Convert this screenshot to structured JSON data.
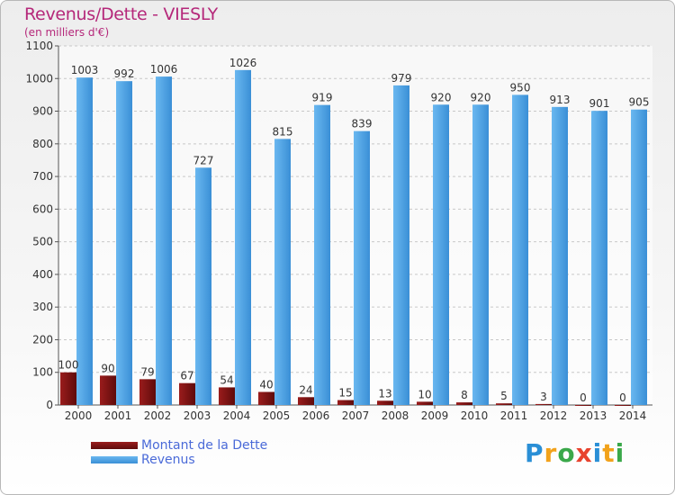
{
  "header": {
    "title": "Revenus/Dette - VIESLY",
    "subtitle": "(en milliers d'€)"
  },
  "logo": {
    "text": "Proxiti",
    "letters": [
      {
        "char": "P",
        "color": "#2a8fd6"
      },
      {
        "char": "r",
        "color": "#f2a21b"
      },
      {
        "char": "o",
        "color": "#3aa84a"
      },
      {
        "char": "x",
        "color": "#e8432e"
      },
      {
        "char": "i",
        "color": "#2a8fd6"
      },
      {
        "char": "t",
        "color": "#f2a21b"
      },
      {
        "char": "i",
        "color": "#3aa84a"
      }
    ]
  },
  "colors": {
    "debt": "#7b1010",
    "revenue": "#4ea6e6",
    "title": "#b5287a",
    "legend_text": "#4a6ad8"
  },
  "chart_data": {
    "type": "bar",
    "title": "Revenus/Dette - VIESLY",
    "ylabel": "(en milliers d'€)",
    "categories": [
      "2000",
      "2001",
      "2002",
      "2003",
      "2004",
      "2005",
      "2006",
      "2007",
      "2008",
      "2009",
      "2010",
      "2011",
      "2012",
      "2013",
      "2014"
    ],
    "series": [
      {
        "name": "Montant de la Dette",
        "color": "#7b1010",
        "values": [
          100,
          90,
          79,
          67,
          54,
          40,
          24,
          15,
          13,
          10,
          8,
          5,
          3,
          0,
          0
        ]
      },
      {
        "name": "Revenus",
        "color": "#4ea6e6",
        "values": [
          1003,
          992,
          1006,
          727,
          1026,
          815,
          919,
          839,
          979,
          920,
          920,
          950,
          913,
          901,
          905
        ]
      }
    ],
    "ylim": [
      0,
      1100
    ],
    "yticks": [
      0,
      100,
      200,
      300,
      400,
      500,
      600,
      700,
      800,
      900,
      1000,
      1100
    ],
    "grid": true,
    "legend": "bottom-left"
  }
}
